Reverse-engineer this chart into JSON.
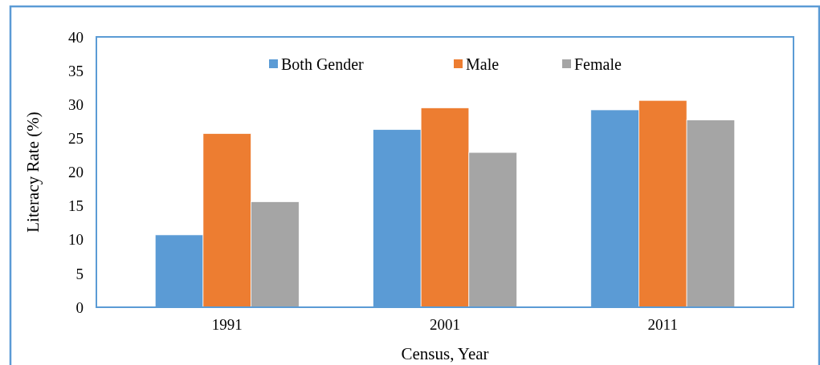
{
  "chart_data": {
    "type": "bar",
    "xlabel": "Census, Year",
    "ylabel": "Literacy Rate (%)",
    "categories": [
      "1991",
      "2001",
      "2011"
    ],
    "series": [
      {
        "name": "Both Gender",
        "color": "#5b9bd5",
        "values": [
          10.7,
          26.3,
          29.2
        ]
      },
      {
        "name": "Male",
        "color": "#ed7d31",
        "values": [
          25.7,
          29.5,
          30.6
        ]
      },
      {
        "name": "Female",
        "color": "#a5a5a5",
        "values": [
          15.6,
          22.9,
          27.7
        ]
      }
    ],
    "ylim": [
      0,
      40
    ],
    "yticks": [
      0,
      5,
      10,
      15,
      20,
      25,
      30,
      35,
      40
    ],
    "grid": false,
    "legend": "top"
  }
}
